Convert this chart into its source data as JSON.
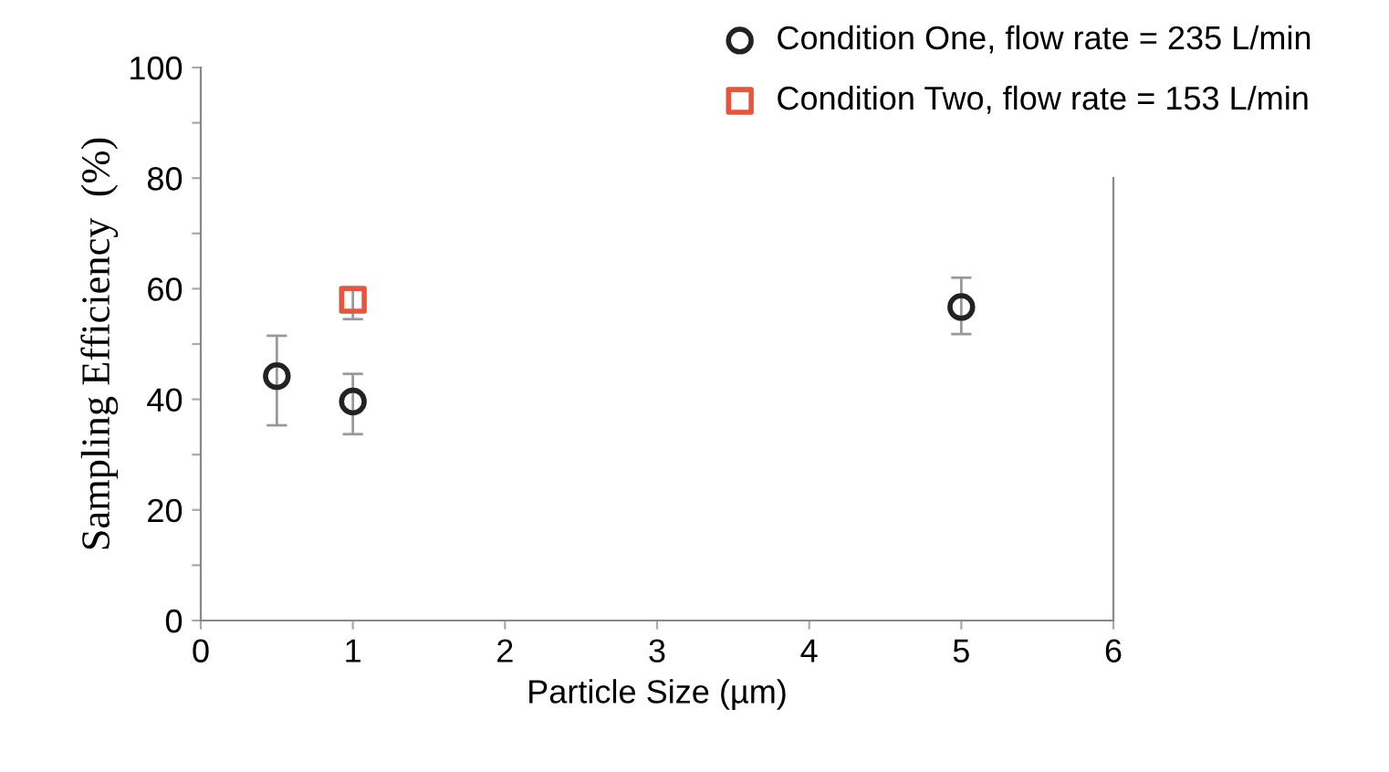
{
  "chart_data": {
    "type": "scatter",
    "xlabel": "Particle Size (µm)",
    "ylabel": "Sampling Efficiency  (%)",
    "xlim": [
      0,
      6
    ],
    "xticks": [
      0,
      1,
      2,
      3,
      4,
      5,
      6
    ],
    "ylim": [
      0,
      100
    ],
    "yticks": [
      0,
      {
        "value": 10,
        "label": null
      },
      20,
      {
        "value": 30,
        "label": null
      },
      40,
      {
        "value": 50,
        "label": null
      },
      60,
      {
        "value": 70,
        "label": null
      },
      80,
      {
        "value": 90,
        "label": null
      },
      100
    ],
    "series": [
      {
        "name": "Condition One, flow rate = 235 L/min",
        "color": "#222222",
        "marker": "circle",
        "x": [
          0.5,
          1,
          5
        ],
        "values": [
          44.2,
          39.6,
          56.7
        ],
        "errors": [
          [
            35.3,
            51.5
          ],
          [
            33.7,
            44.6
          ],
          [
            51.8,
            62
          ]
        ]
      },
      {
        "name": "Condition Two, flow rate = 153 L/min",
        "color": "#e8553f",
        "marker": "square",
        "x": [
          1
        ],
        "values": [
          58
        ],
        "errors": [
          [
            54.5,
            60
          ]
        ]
      }
    ],
    "grid": false,
    "legend": "top right"
  }
}
